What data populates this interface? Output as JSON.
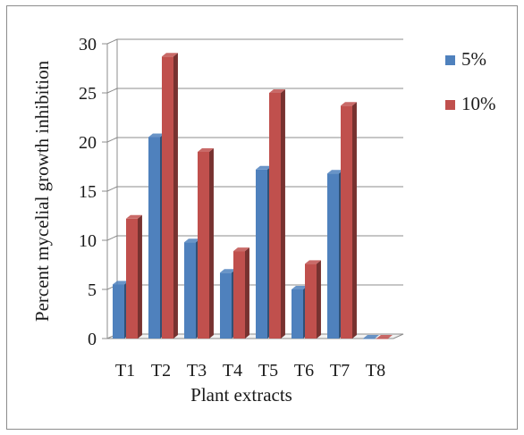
{
  "chart_data": {
    "type": "bar",
    "subtype": "3d-clustered-column",
    "categories": [
      "T1",
      "T2",
      "T3",
      "T4",
      "T5",
      "T6",
      "T7",
      "T8"
    ],
    "series": [
      {
        "name": "5%",
        "color": "#4f81bd",
        "values": [
          5.5,
          20.5,
          9.8,
          6.7,
          17.2,
          5.0,
          16.8,
          0
        ]
      },
      {
        "name": "10%",
        "color": "#c0504d",
        "values": [
          12.2,
          28.7,
          19.0,
          8.9,
          25.0,
          7.6,
          23.7,
          0
        ]
      }
    ],
    "xlabel": "Plant extracts",
    "ylabel": "Percent mycelial growth inhibition",
    "ylim": [
      0,
      30
    ],
    "yticks": [
      0,
      5,
      10,
      15,
      20,
      25,
      30
    ],
    "grid": true,
    "legend_position": "right"
  }
}
